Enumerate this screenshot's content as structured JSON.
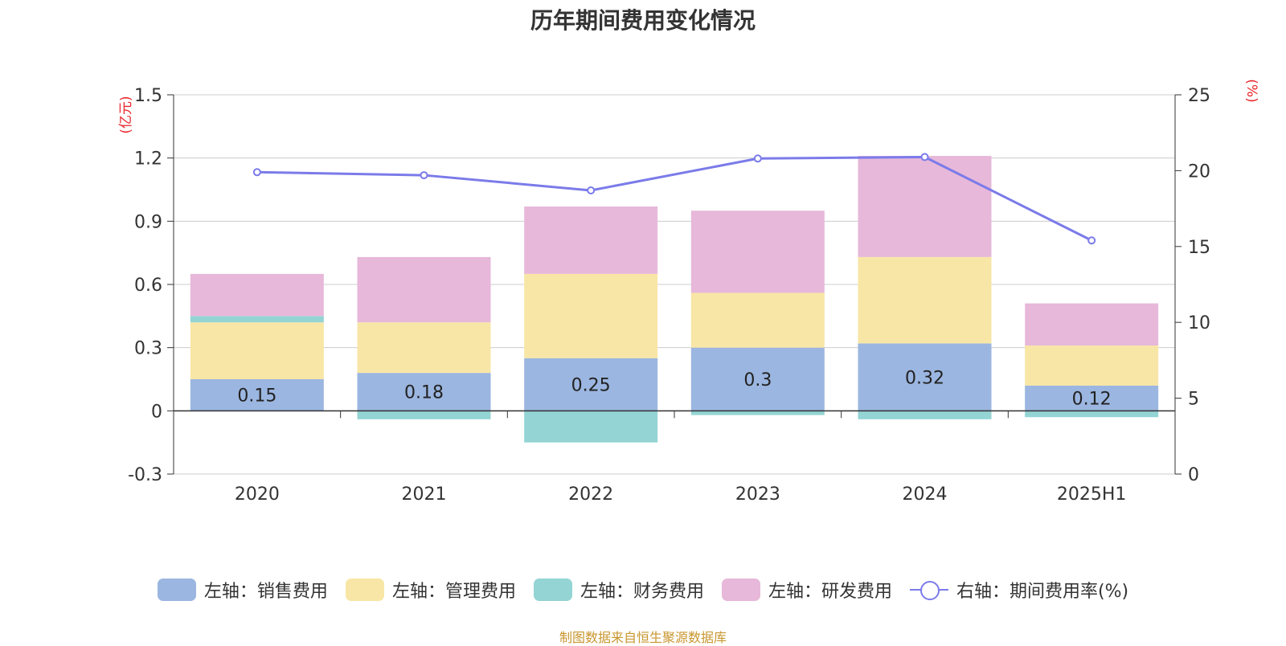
{
  "title": "历年期间费用变化情况",
  "source_note": "制图数据来自恒生聚源数据库",
  "colors": {
    "sales": "#9bb6e0",
    "admin": "#f8e6a6",
    "finance": "#94d4d4",
    "rd": "#e7b8d9",
    "rate": "#7b7bea",
    "axis_unit": "#e8262b"
  },
  "chart_data": {
    "type": "bar",
    "stacked": true,
    "categories": [
      "2020",
      "2021",
      "2022",
      "2023",
      "2024",
      "2025H1"
    ],
    "left_axis": {
      "unit": "(亿元)",
      "ylim": [
        -0.3,
        1.5
      ],
      "ticks": [
        "-0.3",
        "0",
        "0.3",
        "0.6",
        "0.9",
        "1.2",
        "1.5"
      ]
    },
    "right_axis": {
      "unit": "(%)",
      "ylim": [
        0,
        25
      ],
      "ticks": [
        "0",
        "5",
        "10",
        "15",
        "20",
        "25"
      ]
    },
    "series": [
      {
        "key": "sales",
        "name": "左轴：销售费用",
        "values": [
          0.15,
          0.18,
          0.25,
          0.3,
          0.32,
          0.12
        ],
        "labels": [
          "0.15",
          "0.18",
          "0.25",
          "0.3",
          "0.32",
          "0.12"
        ]
      },
      {
        "key": "admin",
        "name": "左轴：管理费用",
        "values": [
          0.27,
          0.24,
          0.4,
          0.26,
          0.41,
          0.19
        ]
      },
      {
        "key": "finance",
        "name": "左轴：财务费用",
        "values": [
          0.03,
          -0.04,
          -0.15,
          -0.02,
          -0.04,
          -0.03
        ]
      },
      {
        "key": "rd",
        "name": "左轴：研发费用",
        "values": [
          0.2,
          0.31,
          0.32,
          0.39,
          0.48,
          0.2
        ]
      }
    ],
    "line": {
      "key": "rate",
      "name": "右轴：期间费用率(%)",
      "values": [
        19.9,
        19.7,
        18.7,
        20.8,
        20.9,
        15.4
      ]
    },
    "grid": true,
    "legend_position": "bottom"
  }
}
